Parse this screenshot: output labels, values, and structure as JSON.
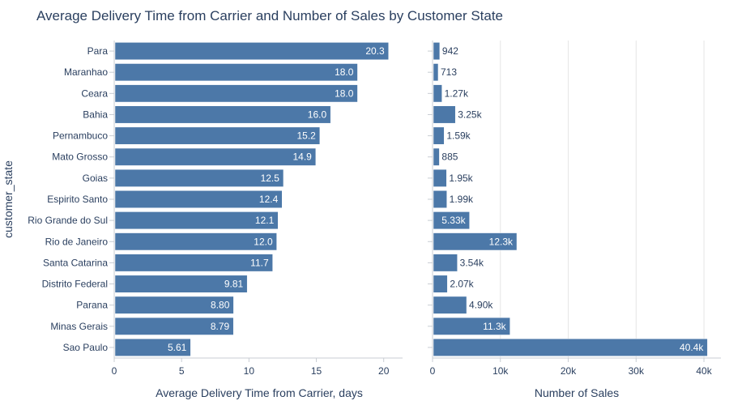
{
  "chart_data": {
    "title": "Average Delivery Time from Carrier and Number of Sales by Customer State",
    "ylabel": "customer_state",
    "bar_color": "#4c78a8",
    "categories": [
      "Para",
      "Maranhao",
      "Ceara",
      "Bahia",
      "Pernambuco",
      "Mato Grosso",
      "Goias",
      "Espirito Santo",
      "Rio Grande do Sul",
      "Rio de Janeiro",
      "Santa Catarina",
      "Distrito Federal",
      "Parana",
      "Minas Gerais",
      "Sao Paulo"
    ],
    "panels": [
      {
        "type": "bar",
        "orientation": "horizontal",
        "xlabel": "Average Delivery Time from Carrier, days",
        "xlim": [
          0,
          21.4
        ],
        "ticks": [
          0,
          5,
          10,
          15,
          20
        ],
        "tick_labels": [
          "0",
          "5",
          "10",
          "15",
          "20"
        ],
        "values": [
          20.3,
          18.0,
          18.0,
          16.0,
          15.2,
          14.9,
          12.5,
          12.4,
          12.1,
          12.0,
          11.7,
          9.81,
          8.8,
          8.79,
          5.61
        ],
        "value_labels": [
          "20.3",
          "18.0",
          "18.0",
          "16.0",
          "15.2",
          "14.9",
          "12.5",
          "12.4",
          "12.1",
          "12.0",
          "11.7",
          "9.81",
          "8.80",
          "8.79",
          "5.61"
        ],
        "gridlines": false
      },
      {
        "type": "bar",
        "orientation": "horizontal",
        "xlabel": "Number of Sales",
        "xlim": [
          0,
          42500
        ],
        "ticks": [
          0,
          10000,
          20000,
          30000,
          40000
        ],
        "tick_labels": [
          "0",
          "10k",
          "20k",
          "30k",
          "40k"
        ],
        "values": [
          942,
          713,
          1270,
          3250,
          1590,
          885,
          1950,
          1990,
          5330,
          12300,
          3540,
          2070,
          4900,
          11300,
          40400
        ],
        "value_labels": [
          "942",
          "713",
          "1.27k",
          "3.25k",
          "1.59k",
          "885",
          "1.95k",
          "1.99k",
          "5.33k",
          "12.3k",
          "3.54k",
          "2.07k",
          "4.90k",
          "11.3k",
          "40.4k"
        ],
        "gridlines": true
      }
    ]
  }
}
